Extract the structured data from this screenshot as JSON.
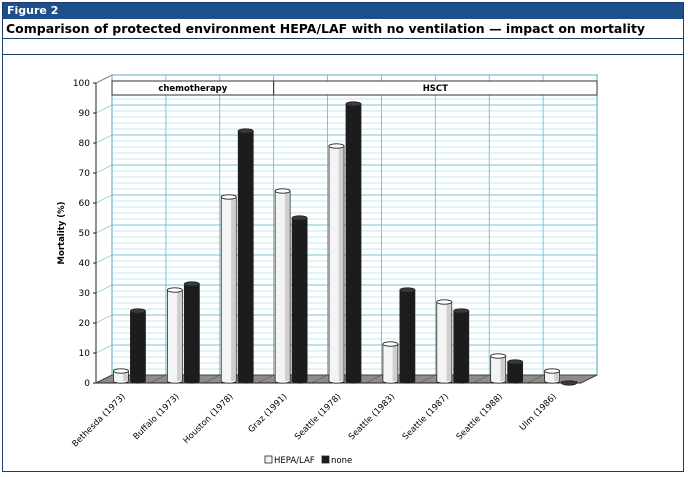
{
  "figure_label": "Figure 2",
  "figure_title": "Comparison of protected environment HEPA/LAF with no ventilation — impact on mortality",
  "chart_data": {
    "type": "bar",
    "categories": [
      "Bethesda (1973)",
      "Buffalo (1973)",
      "Houston (1978)",
      "Graz (1991)",
      "Seattle (1978)",
      "Seattle (1983)",
      "Seattle (1987)",
      "Seattle (1988)",
      "Ulm (1986)"
    ],
    "series": [
      {
        "name": "HEPA/LAF",
        "values": [
          4,
          31,
          62,
          64,
          79,
          13,
          27,
          9,
          4
        ],
        "color": "#f4f4f4"
      },
      {
        "name": "none",
        "values": [
          24,
          33,
          84,
          55,
          93,
          31,
          24,
          7,
          0
        ],
        "color": "#1c1c1c"
      }
    ],
    "ylabel": "Mortality (%)",
    "ylim": [
      0,
      100
    ],
    "yticks": [
      0,
      10,
      20,
      30,
      40,
      50,
      60,
      70,
      80,
      90,
      100
    ],
    "grid": true,
    "groups": [
      {
        "label": "chemotherapy",
        "from": 0,
        "to": 2
      },
      {
        "label": "HSCT",
        "from": 3,
        "to": 8
      }
    ],
    "legend": "bottom"
  }
}
